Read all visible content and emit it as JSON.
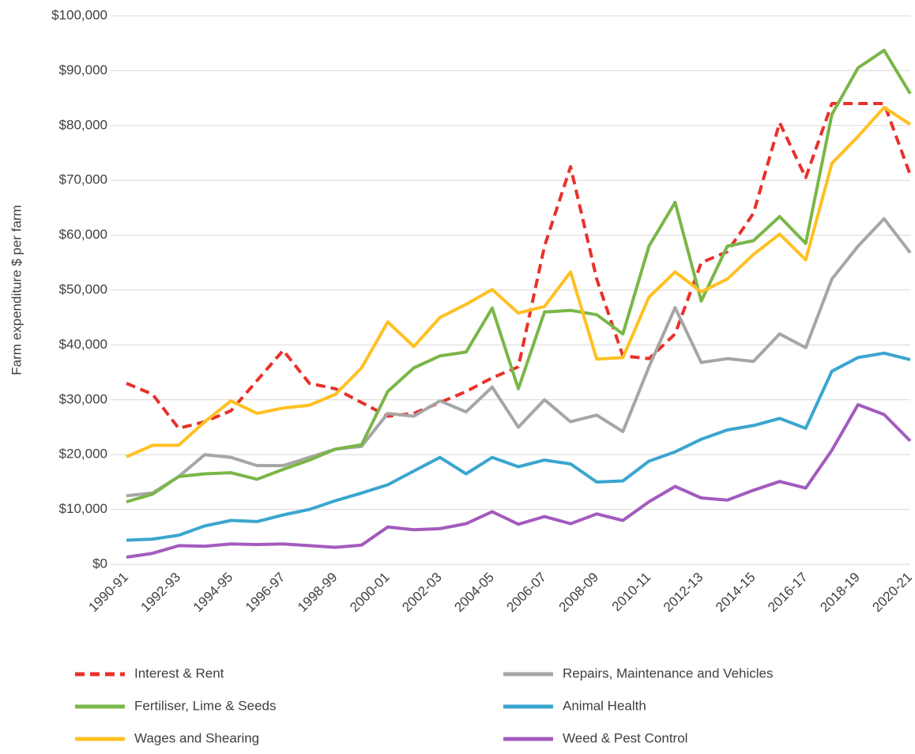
{
  "chart_data": {
    "type": "line",
    "y_label": "Farm expenditure $ per farm",
    "categories": [
      "1990-91",
      null,
      "1992-93",
      null,
      "1994-95",
      null,
      "1996-97",
      null,
      "1998-99",
      null,
      "2000-01",
      null,
      "2002-03",
      null,
      "2004-05",
      null,
      "2006-07",
      null,
      "2008-09",
      null,
      "2010-11",
      null,
      "2012-13",
      null,
      "2014-15",
      null,
      "2016-17",
      null,
      "2018-19",
      null,
      "2020-21"
    ],
    "ylim": [
      0,
      100000
    ],
    "yticks": [
      {
        "value": 0,
        "label": "$0"
      },
      {
        "value": 10000,
        "label": "$10,000"
      },
      {
        "value": 20000,
        "label": "$20,000"
      },
      {
        "value": 30000,
        "label": "$30,000"
      },
      {
        "value": 40000,
        "label": "$40,000"
      },
      {
        "value": 50000,
        "label": "$50,000"
      },
      {
        "value": 60000,
        "label": "$60,000"
      },
      {
        "value": 70000,
        "label": "$70,000"
      },
      {
        "value": 80000,
        "label": "$80,000"
      },
      {
        "value": 90000,
        "label": "$90,000"
      },
      {
        "value": 100000,
        "label": "$100,000"
      }
    ],
    "grid": true,
    "legend": "bottom",
    "series": [
      {
        "name": "Interest & Rent",
        "color": "#e8312a",
        "dash": true,
        "values": [
          33000,
          31000,
          24800,
          26000,
          28000,
          33500,
          39000,
          33000,
          32000,
          29500,
          27000,
          27500,
          29500,
          31500,
          34000,
          36000,
          58000,
          72500,
          52000,
          38000,
          37500,
          42000,
          55000,
          57000,
          64000,
          80500,
          70500,
          84000,
          84000,
          84000,
          71000
        ]
      },
      {
        "name": "Repairs, Maintenance and Vehicles",
        "color": "#a6a6a6",
        "values": [
          12500,
          13000,
          16000,
          20000,
          19500,
          18000,
          18000,
          19500,
          21000,
          21500,
          27500,
          27000,
          29800,
          27800,
          32300,
          25000,
          30000,
          26000,
          27200,
          24200,
          36000,
          46800,
          36800,
          37500,
          37000,
          42000,
          39500,
          52000,
          58000,
          63000,
          56800
        ]
      },
      {
        "name": "Fertiliser, Lime & Seeds",
        "color": "#7ab648",
        "values": [
          11400,
          12800,
          16000,
          16500,
          16700,
          15500,
          17300,
          19000,
          21000,
          21800,
          31500,
          35800,
          38000,
          38700,
          46700,
          32000,
          46000,
          46300,
          45500,
          42000,
          58000,
          66000,
          48000,
          58000,
          59000,
          63400,
          58500,
          82000,
          90500,
          93700,
          85800
        ]
      },
      {
        "name": "Animal Health",
        "color": "#3aa6cf",
        "values": [
          4400,
          4600,
          5300,
          7000,
          8000,
          7800,
          9000,
          10000,
          11600,
          13000,
          14500,
          17000,
          19500,
          16500,
          19500,
          17800,
          19000,
          18300,
          15000,
          15200,
          18800,
          20500,
          22800,
          24500,
          25300,
          26600,
          24800,
          35200,
          37700,
          38500,
          37300
        ]
      },
      {
        "name": "Wages and Shearing",
        "color": "#ffc021",
        "values": [
          19600,
          21700,
          21700,
          26000,
          29800,
          27500,
          28500,
          29000,
          31000,
          35800,
          44200,
          39700,
          45000,
          47400,
          50100,
          45800,
          47000,
          53300,
          37400,
          37700,
          48700,
          53300,
          49700,
          52000,
          56500,
          60200,
          55500,
          73100,
          78000,
          83300,
          80200
        ]
      },
      {
        "name": "Weed & Pest Control",
        "color": "#a35bbd",
        "values": [
          1300,
          2000,
          3400,
          3300,
          3700,
          3600,
          3700,
          3400,
          3100,
          3500,
          6800,
          6300,
          6500,
          7400,
          9600,
          7300,
          8700,
          7400,
          9200,
          8000,
          11400,
          14200,
          12100,
          11700,
          13500,
          15100,
          13900,
          20800,
          29100,
          27300,
          22500
        ]
      }
    ]
  }
}
